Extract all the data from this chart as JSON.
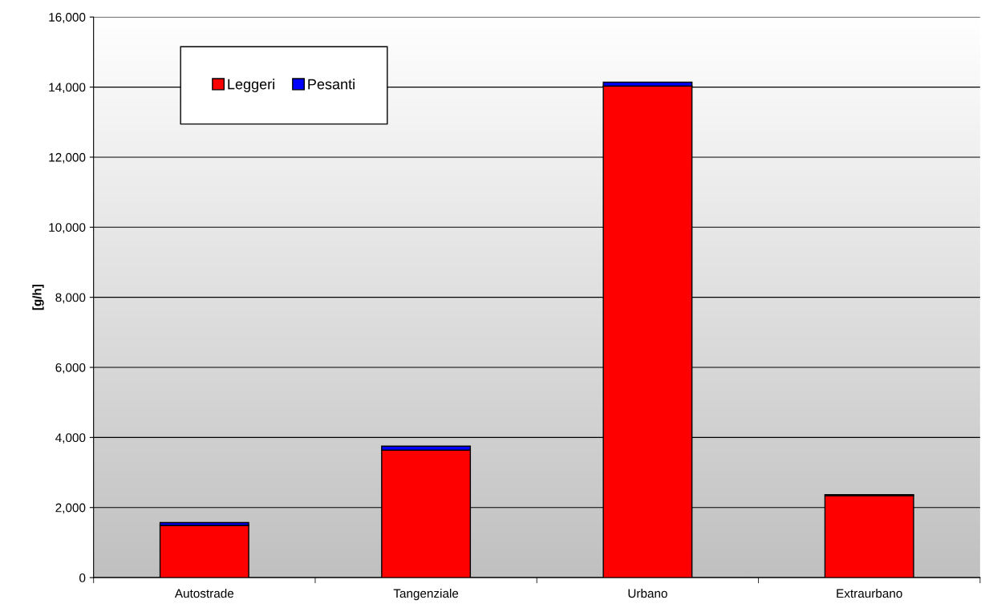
{
  "chart_data": {
    "type": "bar",
    "stacked": true,
    "ylabel": "[g/h]",
    "categories": [
      "Autostrade",
      "Tangenziale",
      "Urbano",
      "Extraurbano"
    ],
    "series": [
      {
        "name": "Leggeri",
        "color": "#ff0000",
        "values": [
          1490,
          3640,
          14030,
          2340
        ]
      },
      {
        "name": "Pesanti",
        "color": "#0000ff",
        "values": [
          80,
          110,
          110,
          30
        ]
      }
    ],
    "ylim": [
      0,
      16000
    ],
    "yticks": [
      {
        "value": 0,
        "label": "0"
      },
      {
        "value": 2000,
        "label": "2,000"
      },
      {
        "value": 4000,
        "label": "4,000"
      },
      {
        "value": 6000,
        "label": "6,000"
      },
      {
        "value": 8000,
        "label": "8,000"
      },
      {
        "value": 10000,
        "label": "10,000"
      },
      {
        "value": 12000,
        "label": "12,000"
      },
      {
        "value": 14000,
        "label": "14,000"
      },
      {
        "value": 16000,
        "label": "16,000"
      }
    ],
    "grid": "y",
    "legend": "top left"
  }
}
